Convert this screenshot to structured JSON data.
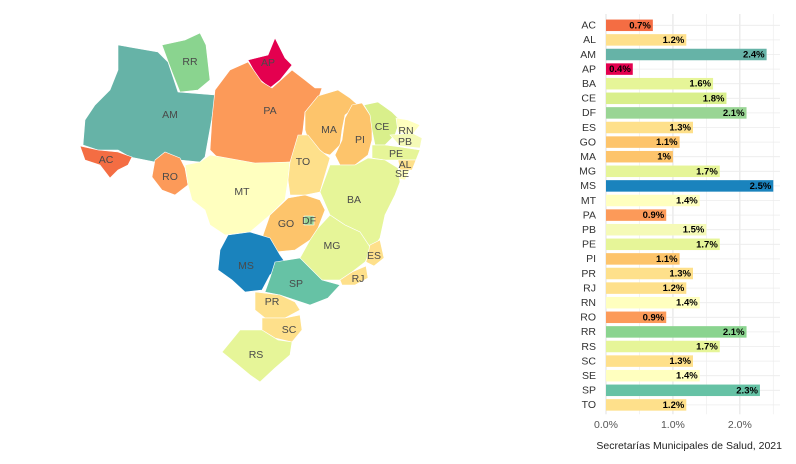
{
  "chart_data": [
    {
      "type": "map",
      "regions": [
        {
          "code": "AC",
          "value": 0.7,
          "color": "#f46d43"
        },
        {
          "code": "AL",
          "value": 1.2,
          "color": "#fee08b"
        },
        {
          "code": "AM",
          "value": 2.4,
          "color": "#66b3a7"
        },
        {
          "code": "AP",
          "value": 0.4,
          "color": "#e4004f"
        },
        {
          "code": "BA",
          "value": 1.6,
          "color": "#e6f598"
        },
        {
          "code": "CE",
          "value": 1.8,
          "color": "#d9ef8b"
        },
        {
          "code": "DF",
          "value": 2.1,
          "color": "#99d594"
        },
        {
          "code": "ES",
          "value": 1.3,
          "color": "#fee08b"
        },
        {
          "code": "GO",
          "value": 1.1,
          "color": "#fdc46b"
        },
        {
          "code": "MA",
          "value": 1.0,
          "color": "#fdc46b"
        },
        {
          "code": "MG",
          "value": 1.7,
          "color": "#e6f598"
        },
        {
          "code": "MS",
          "value": 2.5,
          "color": "#1a83bd"
        },
        {
          "code": "MT",
          "value": 1.4,
          "color": "#ffffbf"
        },
        {
          "code": "PA",
          "value": 0.9,
          "color": "#fc9a59"
        },
        {
          "code": "PB",
          "value": 1.5,
          "color": "#f5fab7"
        },
        {
          "code": "PE",
          "value": 1.7,
          "color": "#e6f598"
        },
        {
          "code": "PI",
          "value": 1.1,
          "color": "#fdc46b"
        },
        {
          "code": "PR",
          "value": 1.3,
          "color": "#fee08b"
        },
        {
          "code": "RJ",
          "value": 1.2,
          "color": "#fee08b"
        },
        {
          "code": "RN",
          "value": 1.4,
          "color": "#ffffbf"
        },
        {
          "code": "RO",
          "value": 0.9,
          "color": "#fc9a59"
        },
        {
          "code": "RR",
          "value": 2.1,
          "color": "#8ad48f"
        },
        {
          "code": "RS",
          "value": 1.7,
          "color": "#e6f598"
        },
        {
          "code": "SC",
          "value": 1.3,
          "color": "#fee08b"
        },
        {
          "code": "SE",
          "value": 1.4,
          "color": "#ffffbf"
        },
        {
          "code": "SP",
          "value": 2.3,
          "color": "#66c2a5"
        },
        {
          "code": "TO",
          "value": 1.2,
          "color": "#fee08b"
        }
      ]
    },
    {
      "type": "bar",
      "orientation": "horizontal",
      "categories": [
        "AC",
        "AL",
        "AM",
        "AP",
        "BA",
        "CE",
        "DF",
        "ES",
        "GO",
        "MA",
        "MG",
        "MS",
        "MT",
        "PA",
        "PB",
        "PE",
        "PI",
        "PR",
        "RJ",
        "RN",
        "RO",
        "RR",
        "RS",
        "SC",
        "SE",
        "SP",
        "TO"
      ],
      "values": [
        0.7,
        1.2,
        2.4,
        0.4,
        1.6,
        1.8,
        2.1,
        1.3,
        1.1,
        1.0,
        1.7,
        2.5,
        1.4,
        0.9,
        1.5,
        1.7,
        1.1,
        1.3,
        1.2,
        1.4,
        0.9,
        2.1,
        1.7,
        1.3,
        1.4,
        2.3,
        1.2
      ],
      "labels": [
        "0.7%",
        "1.2%",
        "2.4%",
        "0.4%",
        "1.6%",
        "1.8%",
        "2.1%",
        "1.3%",
        "1.1%",
        "1%",
        "1.7%",
        "2.5%",
        "1.4%",
        "0.9%",
        "1.5%",
        "1.7%",
        "1.1%",
        "1.3%",
        "1.2%",
        "1.4%",
        "0.9%",
        "2.1%",
        "1.7%",
        "1.3%",
        "1.4%",
        "2.3%",
        "1.2%"
      ],
      "colors": [
        "#f46d43",
        "#fee08b",
        "#66b3a7",
        "#e4004f",
        "#e6f598",
        "#d9ef8b",
        "#99d594",
        "#fee08b",
        "#fdc46b",
        "#fdc46b",
        "#e6f598",
        "#1a83bd",
        "#ffffbf",
        "#fc9a59",
        "#f5fab7",
        "#e6f598",
        "#fdc46b",
        "#fee08b",
        "#fee08b",
        "#ffffbf",
        "#fc9a59",
        "#8ad48f",
        "#e6f598",
        "#fee08b",
        "#ffffbf",
        "#66c2a5",
        "#fee08b"
      ],
      "x_ticks": [
        "0.0%",
        "1.0%",
        "2.0%"
      ],
      "x_tick_values": [
        0,
        1,
        2
      ],
      "xlim": [
        0,
        2.6
      ],
      "grid": true
    }
  ],
  "caption": "Secretarías Municipales de Salud, 2021"
}
